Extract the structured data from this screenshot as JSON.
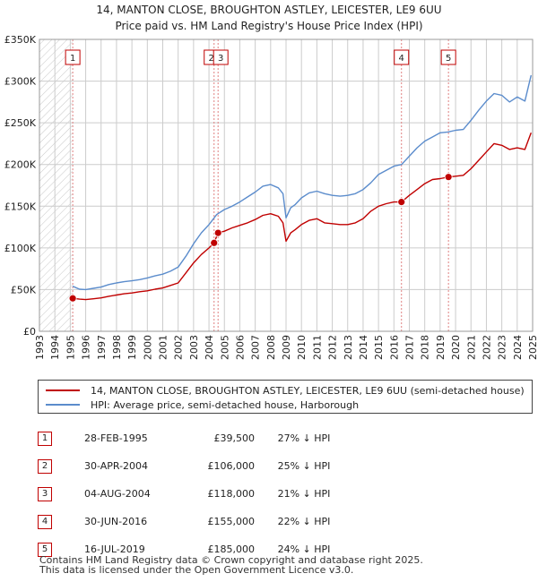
{
  "title_line1": "14, MANTON CLOSE, BROUGHTON ASTLEY, LEICESTER, LE9 6UU",
  "title_line2": "Price paid vs. HM Land Registry's House Price Index (HPI)",
  "colors": {
    "property": "#c00000",
    "hpi": "#5b8ccc",
    "grid": "#cccccc",
    "marker_line": "#e08080"
  },
  "chart_data": {
    "type": "line",
    "title": "14, MANTON CLOSE, BROUGHTON ASTLEY, LEICESTER, LE9 6UU — Price paid vs. HM Land Registry's House Price Index (HPI)",
    "xlabel": "",
    "ylabel": "",
    "xlim": [
      1993,
      2025
    ],
    "ylim": [
      0,
      350000
    ],
    "y_ticks": [
      0,
      50000,
      100000,
      150000,
      200000,
      250000,
      300000,
      350000
    ],
    "y_tick_labels": [
      "£0",
      "£50K",
      "£100K",
      "£150K",
      "£200K",
      "£250K",
      "£300K",
      "£350K"
    ],
    "x_ticks": [
      1993,
      1994,
      1995,
      1996,
      1997,
      1998,
      1999,
      2000,
      2001,
      2002,
      2003,
      2004,
      2005,
      2006,
      2007,
      2008,
      2009,
      2010,
      2011,
      2012,
      2013,
      2014,
      2015,
      2016,
      2017,
      2018,
      2019,
      2020,
      2021,
      2022,
      2023,
      2024,
      2025
    ],
    "grid": true,
    "hatched_before": 1995.16,
    "series": [
      {
        "name": "14, MANTON CLOSE, BROUGHTON ASTLEY, LEICESTER, LE9 6UU (semi-detached house)",
        "color": "#c00000",
        "x": [
          1995.16,
          1995.6,
          1996,
          1996.5,
          1997,
          1997.5,
          1998,
          1998.5,
          1999,
          1999.5,
          2000,
          2000.5,
          2001,
          2001.5,
          2002,
          2002.5,
          2003,
          2003.5,
          2004,
          2004.33,
          2004.59,
          2005,
          2005.5,
          2006,
          2006.5,
          2007,
          2007.5,
          2008,
          2008.5,
          2008.8,
          2009,
          2009.3,
          2009.6,
          2010,
          2010.5,
          2011,
          2011.5,
          2012,
          2012.5,
          2013,
          2013.5,
          2014,
          2014.5,
          2015,
          2015.5,
          2016,
          2016.49,
          2017,
          2017.5,
          2018,
          2018.5,
          2019,
          2019.54,
          2020,
          2020.5,
          2021,
          2021.5,
          2022,
          2022.5,
          2023,
          2023.5,
          2024,
          2024.5,
          2024.9
        ],
        "values": [
          39500,
          38500,
          38000,
          39000,
          40000,
          42000,
          43500,
          45000,
          46000,
          47500,
          48500,
          50500,
          52000,
          55000,
          58000,
          70000,
          82000,
          92000,
          100000,
          106000,
          118000,
          120000,
          124000,
          127000,
          130000,
          134000,
          139000,
          141000,
          138000,
          130000,
          108000,
          118000,
          122000,
          128000,
          133000,
          135000,
          130000,
          129000,
          128000,
          128000,
          130000,
          135000,
          144000,
          150000,
          153000,
          155000,
          155000,
          163000,
          170000,
          177000,
          182000,
          183000,
          185000,
          186000,
          187000,
          195000,
          205000,
          215000,
          225000,
          223000,
          218000,
          220000,
          218000,
          238000
        ]
      },
      {
        "name": "HPI: Average price, semi-detached house, Harborough",
        "color": "#5b8ccc",
        "x": [
          1995.16,
          1995.6,
          1996,
          1996.5,
          1997,
          1997.5,
          1998,
          1998.5,
          1999,
          1999.5,
          2000,
          2000.5,
          2001,
          2001.5,
          2002,
          2002.5,
          2003,
          2003.5,
          2004,
          2004.5,
          2005,
          2005.5,
          2006,
          2006.5,
          2007,
          2007.5,
          2008,
          2008.5,
          2008.8,
          2009,
          2009.3,
          2009.6,
          2010,
          2010.5,
          2011,
          2011.5,
          2012,
          2012.5,
          2013,
          2013.5,
          2014,
          2014.5,
          2015,
          2015.5,
          2016,
          2016.5,
          2017,
          2017.5,
          2018,
          2018.5,
          2019,
          2019.5,
          2020,
          2020.5,
          2021,
          2021.5,
          2022,
          2022.5,
          2023,
          2023.5,
          2024,
          2024.5,
          2024.9
        ],
        "values": [
          54000,
          50500,
          50000,
          51500,
          53000,
          56000,
          58000,
          59500,
          60500,
          62000,
          64000,
          66500,
          68500,
          72000,
          77000,
          90000,
          105000,
          118000,
          128000,
          140000,
          146000,
          150000,
          155000,
          161000,
          167000,
          174000,
          176000,
          172000,
          165000,
          136000,
          148000,
          152000,
          160000,
          166000,
          168000,
          165000,
          163000,
          162000,
          163000,
          165000,
          170000,
          178000,
          188000,
          193000,
          198000,
          200000,
          210000,
          220000,
          228000,
          233000,
          238000,
          239000,
          241000,
          242000,
          253000,
          265000,
          276000,
          285000,
          283000,
          275000,
          281000,
          276000,
          307000
        ]
      }
    ],
    "markers": [
      {
        "label": "1",
        "year": 1995.16,
        "price": 39500
      },
      {
        "label": "2",
        "year": 2004.33,
        "price": 106000
      },
      {
        "label": "3",
        "year": 2004.59,
        "price": 118000
      },
      {
        "label": "4",
        "year": 2016.49,
        "price": 155000
      },
      {
        "label": "5",
        "year": 2019.54,
        "price": 185000
      }
    ]
  },
  "legend": {
    "property_label": "14, MANTON CLOSE, BROUGHTON ASTLEY, LEICESTER, LE9 6UU (semi-detached house)",
    "hpi_label": "HPI: Average price, semi-detached house, Harborough"
  },
  "transactions": [
    {
      "num": "1",
      "date": "28-FEB-1995",
      "price": "£39,500",
      "hpi": "27% ↓ HPI"
    },
    {
      "num": "2",
      "date": "30-APR-2004",
      "price": "£106,000",
      "hpi": "25% ↓ HPI"
    },
    {
      "num": "3",
      "date": "04-AUG-2004",
      "price": "£118,000",
      "hpi": "21% ↓ HPI"
    },
    {
      "num": "4",
      "date": "30-JUN-2016",
      "price": "£155,000",
      "hpi": "22% ↓ HPI"
    },
    {
      "num": "5",
      "date": "16-JUL-2019",
      "price": "£185,000",
      "hpi": "24% ↓ HPI"
    }
  ],
  "footer_line1": "Contains HM Land Registry data © Crown copyright and database right 2025.",
  "footer_line2": "This data is licensed under the Open Government Licence v3.0."
}
